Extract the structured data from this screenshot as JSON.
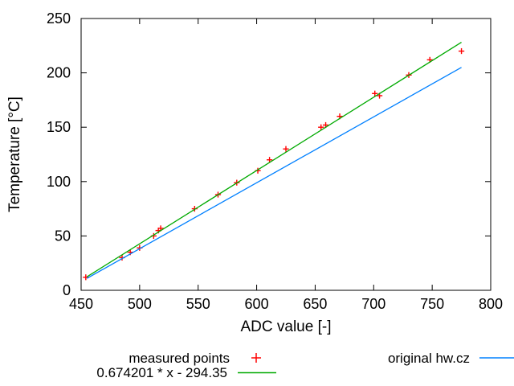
{
  "chart_data": {
    "type": "scatter",
    "title": "",
    "xlabel": "ADC value [-]",
    "ylabel": "Temperature [°C]",
    "xlim": [
      450,
      800
    ],
    "ylim": [
      0,
      250
    ],
    "xticks": [
      450,
      500,
      550,
      600,
      650,
      700,
      750,
      800
    ],
    "yticks": [
      0,
      50,
      100,
      150,
      200,
      250
    ],
    "grid": false,
    "legend_position": "below-plot",
    "border_color": "#000000",
    "background_color": "#ffffff",
    "series": [
      {
        "name": "measured points",
        "type": "scatter",
        "marker": "plus",
        "color": "#ff0000",
        "points": [
          [
            454,
            12
          ],
          [
            485,
            30
          ],
          [
            492,
            35
          ],
          [
            500,
            39
          ],
          [
            512,
            50
          ],
          [
            516,
            55
          ],
          [
            518,
            57
          ],
          [
            547,
            75
          ],
          [
            567,
            88
          ],
          [
            583,
            99
          ],
          [
            601,
            110
          ],
          [
            611,
            120
          ],
          [
            625,
            130
          ],
          [
            655,
            150
          ],
          [
            659,
            152
          ],
          [
            671,
            160
          ],
          [
            701,
            181
          ],
          [
            705,
            179
          ],
          [
            730,
            198
          ],
          [
            748,
            212
          ],
          [
            775,
            220
          ]
        ]
      },
      {
        "name": "0.674201 * x - 294.35",
        "type": "line",
        "color": "#00aa00",
        "slope": 0.674201,
        "intercept": -294.35,
        "x_range": [
          455,
          775
        ]
      },
      {
        "name": "original hw.cz",
        "type": "line",
        "color": "#0080ff",
        "x_range": [
          455,
          775
        ],
        "y_values": [
          11,
          205
        ]
      }
    ]
  }
}
